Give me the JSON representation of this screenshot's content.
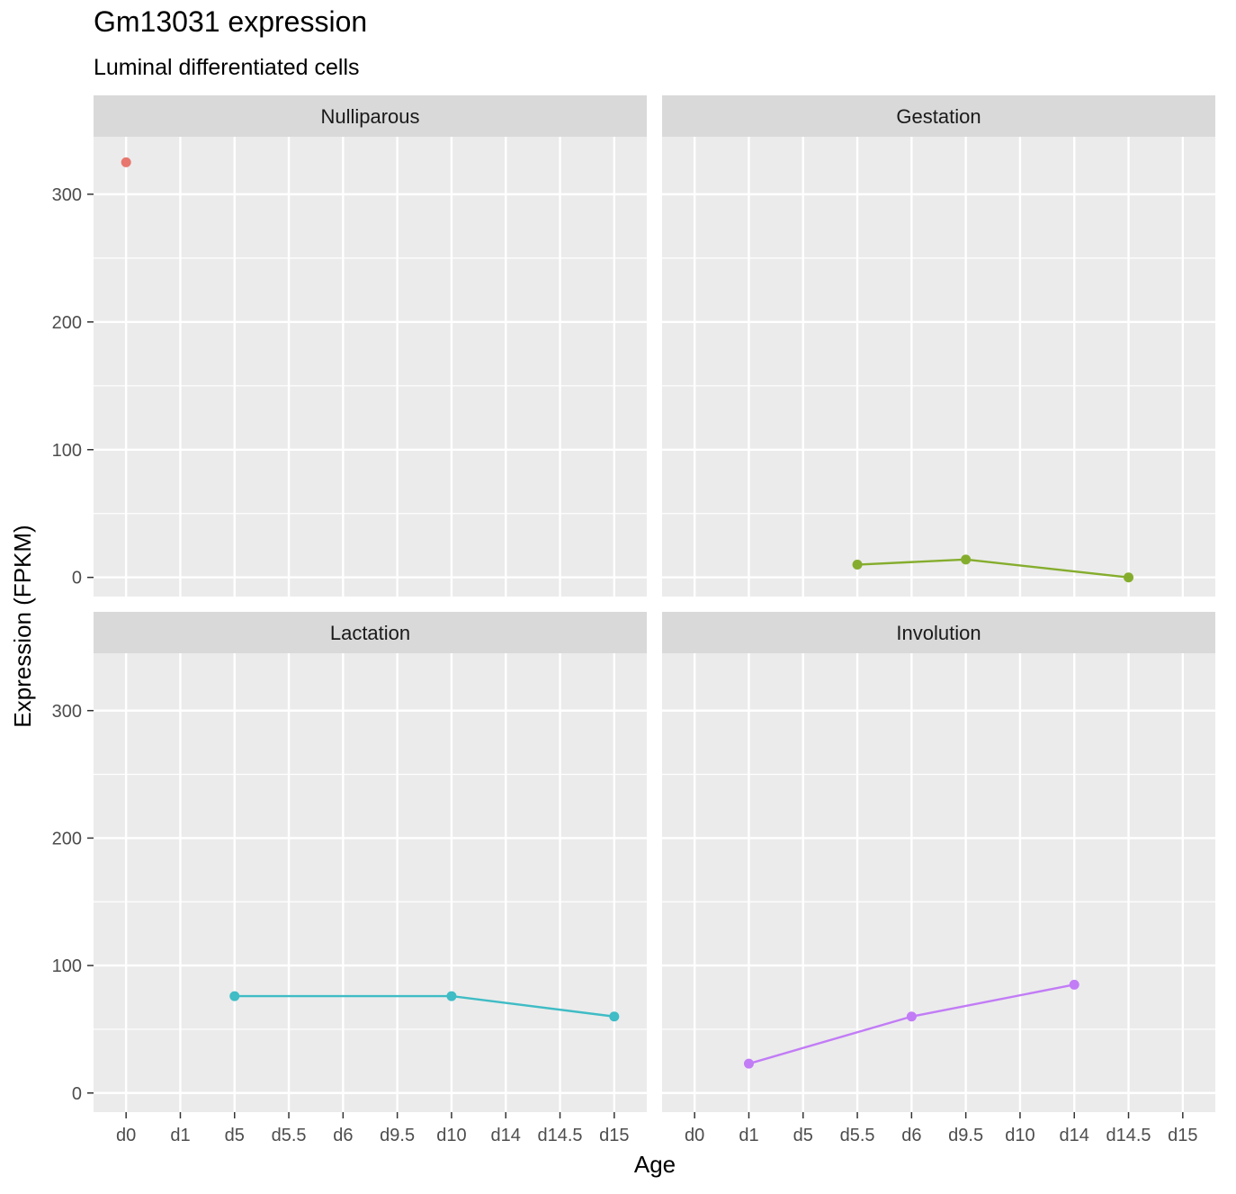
{
  "chart_data": {
    "type": "line",
    "title": "Gm13031 expression",
    "subtitle": "Luminal differentiated cells",
    "xlabel": "Age",
    "ylabel": "Expression (FPKM)",
    "categories": [
      "d0",
      "d1",
      "d5",
      "d5.5",
      "d6",
      "d9.5",
      "d10",
      "d14",
      "d14.5",
      "d15"
    ],
    "ylim": [
      -15,
      345
    ],
    "yticks": [
      0,
      100,
      200,
      300
    ],
    "grid": true,
    "facets": [
      {
        "name": "Nulliparous",
        "color": "#E7766E",
        "points": [
          {
            "x": "d0",
            "y": 325
          }
        ]
      },
      {
        "name": "Gestation",
        "color": "#85AD2D",
        "points": [
          {
            "x": "d5.5",
            "y": 10
          },
          {
            "x": "d9.5",
            "y": 14
          },
          {
            "x": "d14.5",
            "y": 0
          }
        ]
      },
      {
        "name": "Lactation",
        "color": "#3FBCC5",
        "points": [
          {
            "x": "d5",
            "y": 76
          },
          {
            "x": "d10",
            "y": 76
          },
          {
            "x": "d15",
            "y": 60
          }
        ]
      },
      {
        "name": "Involution",
        "color": "#C27CF6",
        "points": [
          {
            "x": "d1",
            "y": 23
          },
          {
            "x": "d6",
            "y": 60
          },
          {
            "x": "d14",
            "y": 85
          }
        ]
      }
    ]
  }
}
